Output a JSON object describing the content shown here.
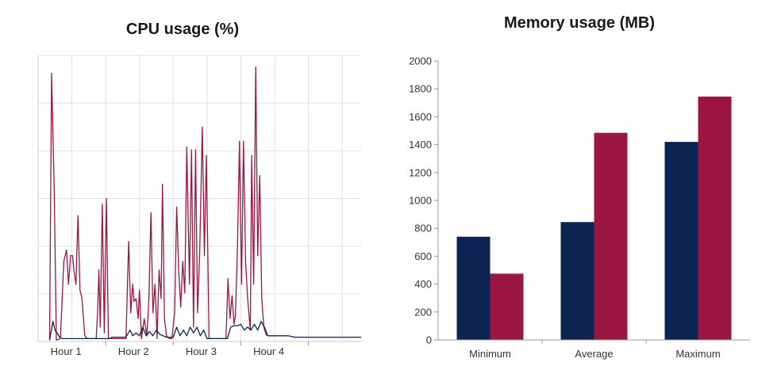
{
  "chart_data": [
    {
      "type": "line",
      "title": "CPU usage (%)",
      "x_categories": [
        "Hour 1",
        "Hour 2",
        "Hour 3",
        "Hour 4"
      ],
      "x_range": [
        0,
        4.78
      ],
      "y_range": [
        0,
        100
      ],
      "grid": true,
      "legend": "none",
      "colors": {
        "series_a": "#9b1742",
        "series_b": "#0d2452"
      },
      "series": [
        {
          "color": "#9b1742",
          "points": [
            [
              0.17,
              0.5
            ],
            [
              0.2,
              93.7
            ],
            [
              0.24,
              52
            ],
            [
              0.27,
              0.5
            ],
            [
              0.33,
              1
            ],
            [
              0.38,
              28
            ],
            [
              0.42,
              32
            ],
            [
              0.45,
              20
            ],
            [
              0.48,
              30
            ],
            [
              0.51,
              30
            ],
            [
              0.53,
              25
            ],
            [
              0.56,
              20
            ],
            [
              0.59,
              44
            ],
            [
              0.62,
              18
            ],
            [
              0.65,
              15
            ],
            [
              0.69,
              2
            ],
            [
              0.73,
              1
            ],
            [
              0.8,
              1
            ],
            [
              0.86,
              1
            ],
            [
              0.88,
              10
            ],
            [
              0.9,
              25
            ],
            [
              0.92,
              5
            ],
            [
              0.95,
              48
            ],
            [
              0.98,
              3
            ],
            [
              1.01,
              50
            ],
            [
              1.04,
              1
            ],
            [
              1.1,
              1
            ],
            [
              1.2,
              1
            ],
            [
              1.3,
              1
            ],
            [
              1.34,
              35
            ],
            [
              1.37,
              10
            ],
            [
              1.4,
              20
            ],
            [
              1.42,
              14
            ],
            [
              1.45,
              15
            ],
            [
              1.48,
              8
            ],
            [
              1.5,
              18
            ],
            [
              1.53,
              1
            ],
            [
              1.57,
              8
            ],
            [
              1.61,
              2
            ],
            [
              1.64,
              15
            ],
            [
              1.67,
              45
            ],
            [
              1.7,
              10
            ],
            [
              1.73,
              20
            ],
            [
              1.76,
              1
            ],
            [
              1.79,
              25
            ],
            [
              1.82,
              15
            ],
            [
              1.84,
              55
            ],
            [
              1.87,
              8
            ],
            [
              1.9,
              2
            ],
            [
              1.94,
              1
            ],
            [
              1.98,
              1
            ],
            [
              2.02,
              10
            ],
            [
              2.05,
              47
            ],
            [
              2.08,
              25
            ],
            [
              2.11,
              12
            ],
            [
              2.14,
              28
            ],
            [
              2.17,
              17
            ],
            [
              2.2,
              68
            ],
            [
              2.24,
              20
            ],
            [
              2.27,
              67
            ],
            [
              2.3,
              5
            ],
            [
              2.33,
              67
            ],
            [
              2.36,
              10
            ],
            [
              2.39,
              30
            ],
            [
              2.43,
              75
            ],
            [
              2.46,
              30
            ],
            [
              2.49,
              65
            ],
            [
              2.53,
              1
            ],
            [
              2.6,
              1
            ],
            [
              2.7,
              1
            ],
            [
              2.78,
              1
            ],
            [
              2.81,
              22
            ],
            [
              2.84,
              8
            ],
            [
              2.87,
              16
            ],
            [
              2.9,
              6
            ],
            [
              2.92,
              9
            ],
            [
              2.95,
              33
            ],
            [
              2.98,
              70
            ],
            [
              3.01,
              20
            ],
            [
              3.04,
              70
            ],
            [
              3.07,
              28
            ],
            [
              3.1,
              15
            ],
            [
              3.14,
              4
            ],
            [
              3.16,
              65
            ],
            [
              3.19,
              20
            ],
            [
              3.22,
              96
            ],
            [
              3.25,
              30
            ],
            [
              3.28,
              58
            ],
            [
              3.31,
              15
            ],
            [
              3.34,
              5
            ],
            [
              3.38,
              2
            ]
          ]
        },
        {
          "color": "#0d2452",
          "points": [
            [
              0.17,
              0.5
            ],
            [
              0.22,
              7
            ],
            [
              0.25,
              4
            ],
            [
              0.28,
              3
            ],
            [
              0.32,
              1.5
            ],
            [
              0.36,
              1
            ],
            [
              0.5,
              1
            ],
            [
              0.6,
              1
            ],
            [
              0.7,
              1
            ],
            [
              0.86,
              1
            ],
            [
              0.95,
              1
            ],
            [
              1.05,
              1
            ],
            [
              1.1,
              1.5
            ],
            [
              1.2,
              1.5
            ],
            [
              1.3,
              1.5
            ],
            [
              1.36,
              4
            ],
            [
              1.4,
              2
            ],
            [
              1.45,
              3
            ],
            [
              1.5,
              2
            ],
            [
              1.55,
              5
            ],
            [
              1.6,
              2
            ],
            [
              1.65,
              3.5
            ],
            [
              1.7,
              2
            ],
            [
              1.75,
              4
            ],
            [
              1.8,
              2.5
            ],
            [
              1.85,
              2
            ],
            [
              1.9,
              1.5
            ],
            [
              2.0,
              1.5
            ],
            [
              2.05,
              5
            ],
            [
              2.1,
              2
            ],
            [
              2.15,
              4
            ],
            [
              2.2,
              2
            ],
            [
              2.25,
              5
            ],
            [
              2.3,
              3
            ],
            [
              2.35,
              5
            ],
            [
              2.4,
              2
            ],
            [
              2.45,
              4
            ],
            [
              2.5,
              1
            ],
            [
              2.6,
              1
            ],
            [
              2.7,
              1
            ],
            [
              2.8,
              1
            ],
            [
              2.85,
              5
            ],
            [
              2.9,
              5.5
            ],
            [
              2.95,
              5.5
            ],
            [
              3.0,
              6
            ],
            [
              3.05,
              4
            ],
            [
              3.1,
              5
            ],
            [
              3.15,
              4
            ],
            [
              3.2,
              6
            ],
            [
              3.25,
              4
            ],
            [
              3.3,
              7
            ],
            [
              3.35,
              5
            ],
            [
              3.4,
              2
            ],
            [
              3.5,
              2
            ],
            [
              3.6,
              2
            ],
            [
              3.7,
              2
            ],
            [
              3.8,
              1.5
            ],
            [
              3.9,
              1.5
            ],
            [
              4.0,
              1.5
            ],
            [
              4.2,
              1.5
            ],
            [
              4.5,
              1.5
            ],
            [
              4.78,
              1.5
            ]
          ]
        }
      ]
    },
    {
      "type": "bar",
      "title": "Memory usage (MB)",
      "categories": [
        "Minimum",
        "Average",
        "Maximum"
      ],
      "ylim": [
        0,
        2000
      ],
      "yticks": [
        "0",
        "200",
        "400",
        "600",
        "800",
        "1000",
        "1200",
        "1400",
        "1600",
        "1800",
        "2000"
      ],
      "grid": false,
      "legend": "none",
      "series": [
        {
          "color": "#0d2452",
          "values": [
            740,
            845,
            1420
          ]
        },
        {
          "color": "#9b1742",
          "values": [
            475,
            1485,
            1745
          ]
        }
      ]
    }
  ]
}
